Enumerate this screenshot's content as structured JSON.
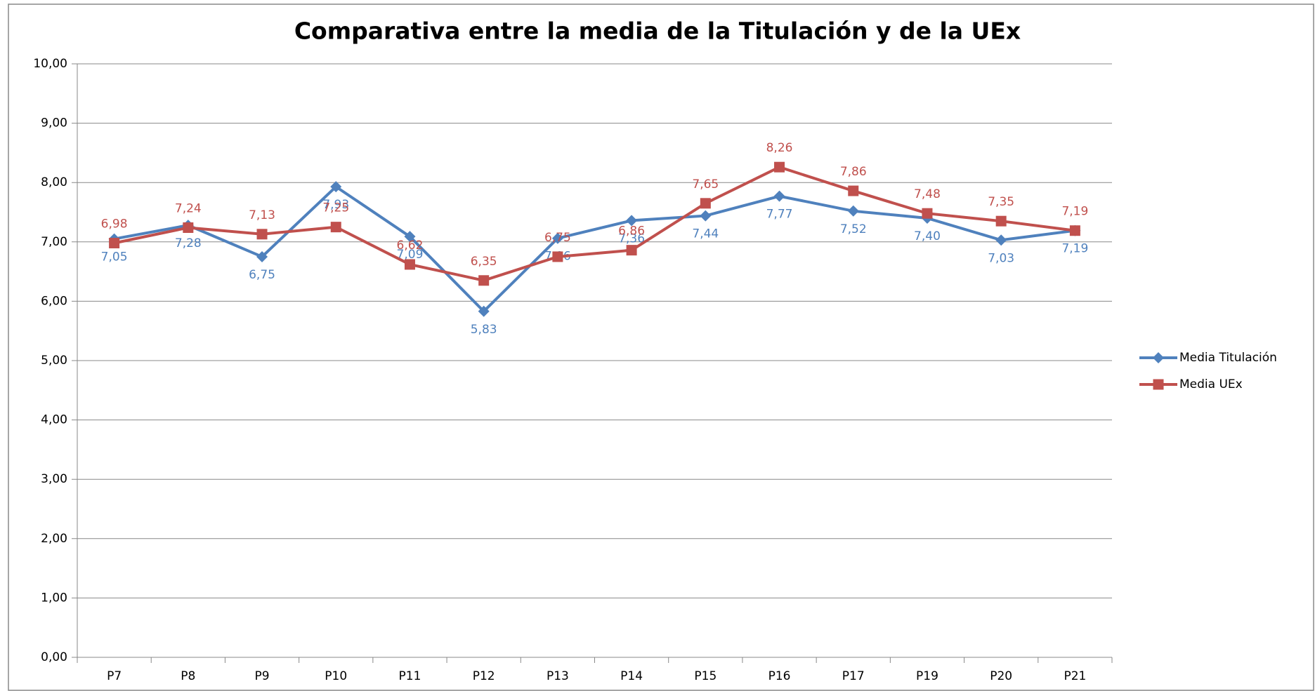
{
  "chart_data": {
    "type": "line",
    "title": "Comparativa entre la media de la Titulación y de la UEx",
    "categories": [
      "P7",
      "P8",
      "P9",
      "P10",
      "P11",
      "P12",
      "P13",
      "P14",
      "P15",
      "P16",
      "P17",
      "P19",
      "P20",
      "P21"
    ],
    "series": [
      {
        "name": "Media Titulación",
        "color": "#4f81bd",
        "marker": "diamond",
        "values": [
          7.05,
          7.28,
          6.75,
          7.93,
          7.09,
          5.83,
          7.06,
          7.36,
          7.44,
          7.77,
          7.52,
          7.4,
          7.03,
          7.19
        ],
        "value_labels": [
          "7,05",
          "7,28",
          "6,75",
          "7,93",
          "7,09",
          "5,83",
          "7,06",
          "7,36",
          "7,44",
          "7,77",
          "7,52",
          "7,40",
          "7,03",
          "7,19"
        ]
      },
      {
        "name": "Media UEx",
        "color": "#c0504d",
        "marker": "square",
        "values": [
          6.98,
          7.24,
          7.13,
          7.25,
          6.62,
          6.35,
          6.75,
          6.86,
          7.65,
          8.26,
          7.86,
          7.48,
          7.35,
          7.19
        ],
        "value_labels": [
          "6,98",
          "7,24",
          "7,13",
          "7,25",
          "6,62",
          "6,35",
          "6,75",
          "6,86",
          "7,65",
          "8,26",
          "7,86",
          "7,48",
          "7,35",
          "7,19"
        ]
      }
    ],
    "ylim": [
      0,
      10
    ],
    "yticks": [
      {
        "value": 0,
        "label": "0,00"
      },
      {
        "value": 1,
        "label": "1,00"
      },
      {
        "value": 2,
        "label": "2,00"
      },
      {
        "value": 3,
        "label": "3,00"
      },
      {
        "value": 4,
        "label": "4,00"
      },
      {
        "value": 5,
        "label": "5,00"
      },
      {
        "value": 6,
        "label": "6,00"
      },
      {
        "value": 7,
        "label": "7,00"
      },
      {
        "value": 8,
        "label": "8,00"
      },
      {
        "value": 9,
        "label": "9,00"
      },
      {
        "value": 10,
        "label": "10,00"
      }
    ],
    "grid": true,
    "legend": "right"
  }
}
